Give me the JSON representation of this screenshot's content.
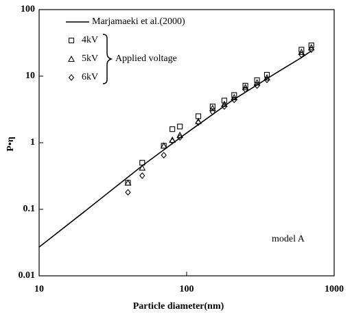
{
  "chart_data": {
    "type": "scatter",
    "xlabel": "Particle diameter(nm)",
    "ylabel": "P•η",
    "xlim": [
      10,
      1000
    ],
    "xticks": [
      10,
      100,
      1000
    ],
    "xscale": "log",
    "ylim": [
      0.01,
      100
    ],
    "yticks": [
      0.01,
      0.1,
      1,
      10,
      100
    ],
    "yscale": "log",
    "annotations": [
      "Applied voltage",
      "model A"
    ],
    "series": [
      {
        "name": "Marjamaeki et al.(2000)",
        "kind": "line",
        "color": "#000000",
        "x": [
          10,
          20,
          50,
          100,
          200,
          400,
          600,
          700
        ],
        "values": [
          0.027,
          0.09,
          0.45,
          1.4,
          4.2,
          11,
          19,
          24
        ]
      },
      {
        "name": "4kV",
        "kind": "square",
        "color": "#000000",
        "x": [
          40,
          50,
          70,
          80,
          90,
          120,
          150,
          180,
          210,
          250,
          300,
          350,
          600,
          700
        ],
        "values": [
          0.25,
          0.5,
          0.9,
          1.6,
          1.75,
          2.5,
          3.5,
          4.3,
          5.2,
          7.2,
          8.7,
          10.5,
          25,
          29
        ]
      },
      {
        "name": "5kV",
        "kind": "triangle",
        "color": "#000000",
        "x": [
          40,
          50,
          70,
          80,
          90,
          120,
          150,
          180,
          210,
          250,
          300,
          350,
          600,
          700
        ],
        "values": [
          0.25,
          0.42,
          0.9,
          1.1,
          1.3,
          2.1,
          3.3,
          3.8,
          4.8,
          6.8,
          8,
          9.5,
          23,
          27
        ]
      },
      {
        "name": "6kV",
        "kind": "diamond",
        "color": "#000000",
        "x": [
          40,
          50,
          70,
          80,
          90,
          120,
          150,
          180,
          210,
          250,
          300,
          350,
          600,
          700
        ],
        "values": [
          0.18,
          0.32,
          0.65,
          1.05,
          1.2,
          2.0,
          2.9,
          3.5,
          4.4,
          6.3,
          7.2,
          8.8,
          21,
          25
        ]
      }
    ]
  }
}
